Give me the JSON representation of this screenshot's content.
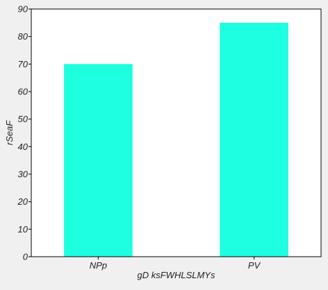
{
  "chart_data": {
    "type": "bar",
    "title": "",
    "xlabel": "gD ksFWHLSLMYs",
    "ylabel": "rSeaF",
    "categories": [
      "NPp",
      "PV"
    ],
    "series": [
      {
        "values": [
          70,
          85
        ]
      }
    ],
    "ylim": [
      0,
      90
    ],
    "yticks": [
      0,
      10,
      20,
      30,
      40,
      50,
      60,
      70,
      80,
      90
    ],
    "grid": false,
    "legend": "none",
    "bar_color": "#1dffdf",
    "plot_background": "#ffffff",
    "figure_background": "#f0f0f0"
  }
}
